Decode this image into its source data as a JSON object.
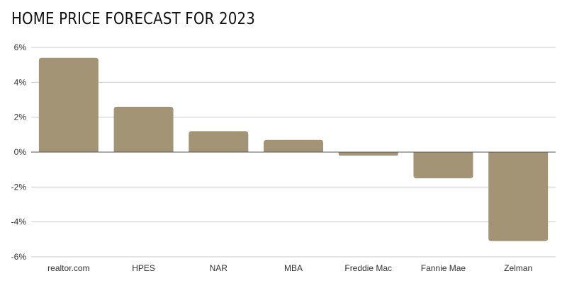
{
  "title": "HOME PRICE FORECAST FOR 2023",
  "colors": {
    "bar": "#a39475",
    "grid": "#cccccc",
    "zero_line": "#555555",
    "text": "#333333"
  },
  "chart_data": {
    "type": "bar",
    "title": "HOME PRICE FORECAST FOR 2023",
    "xlabel": "",
    "ylabel": "",
    "categories": [
      "realtor.com",
      "HPES",
      "NAR",
      "MBA",
      "Freddie Mac",
      "Fannie Mae",
      "Zelman"
    ],
    "values": [
      5.4,
      2.6,
      1.2,
      0.7,
      -0.2,
      -1.5,
      -5.1
    ],
    "ylim": [
      -6,
      6
    ],
    "yticks": [
      6,
      4,
      2,
      0,
      -2,
      -4,
      -6
    ],
    "ytick_labels": [
      "6%",
      "4%",
      "2%",
      "0%",
      "-2%",
      "-4%",
      "-6%"
    ],
    "grid": true,
    "legend": "none"
  }
}
